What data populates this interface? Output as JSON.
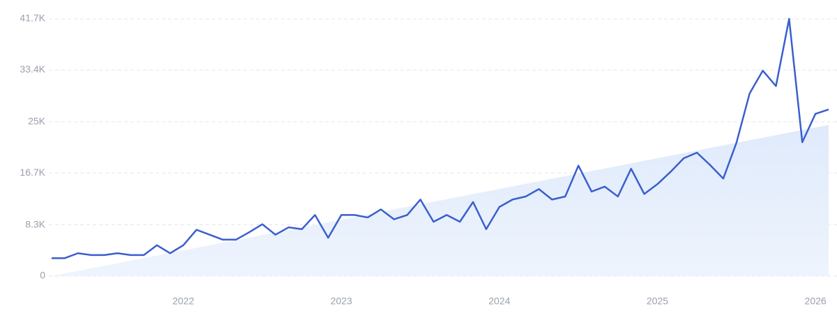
{
  "chart_data": {
    "type": "line",
    "categories": [
      null,
      null,
      null,
      null,
      null,
      null,
      null,
      null,
      null,
      null,
      "2022",
      null,
      null,
      null,
      null,
      null,
      null,
      null,
      null,
      null,
      null,
      null,
      "2023",
      null,
      null,
      null,
      null,
      null,
      null,
      null,
      null,
      null,
      null,
      null,
      "2024",
      null,
      null,
      null,
      null,
      null,
      null,
      null,
      null,
      null,
      null,
      null,
      "2025",
      null,
      null,
      null,
      null,
      null,
      null,
      null,
      null,
      null,
      null,
      null,
      "2026",
      null
    ],
    "series": [
      {
        "color": "#3a5fcd",
        "values": [
          2900,
          2900,
          3700,
          3400,
          3400,
          3700,
          3400,
          3400,
          5000,
          3700,
          5000,
          7500,
          6700,
          5900,
          5900,
          7100,
          8400,
          6700,
          7900,
          7600,
          9900,
          6200,
          9900,
          9900,
          9500,
          10800,
          9200,
          9900,
          12400,
          8800,
          9900,
          8800,
          12000,
          7600,
          11200,
          12400,
          12900,
          14100,
          12400,
          12900,
          17900,
          13700,
          14500,
          12900,
          17400,
          13300,
          14900,
          16900,
          19100,
          20000,
          18000,
          15800,
          21600,
          29600,
          33300,
          30800,
          41700,
          21700,
          26300,
          27000
        ]
      }
    ],
    "trend": {
      "color": "#dfeafb",
      "values": [
        0,
        24500
      ]
    },
    "ylim": [
      0,
      41700
    ],
    "yticks": [
      0,
      {
        "value": 8300,
        "label": "8.3K"
      },
      {
        "value": 16700,
        "label": "16.7K"
      },
      {
        "value": 25000,
        "label": "25K"
      },
      {
        "value": 33400,
        "label": "33.4K"
      },
      {
        "value": 41700,
        "label": "41.7K"
      }
    ],
    "grid": true
  }
}
